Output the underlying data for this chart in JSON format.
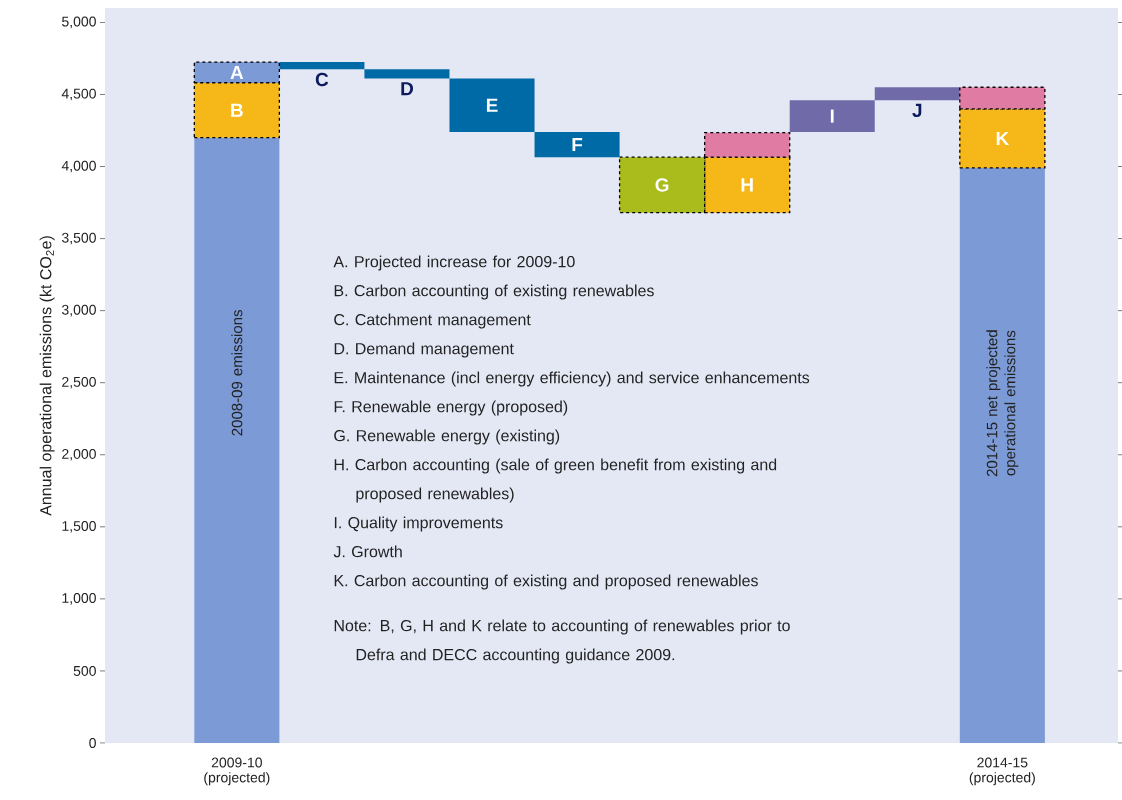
{
  "chart_data": {
    "type": "bar",
    "ylabel": "Annual operational emissions (kt CO$_{2}$e)",
    "categories": [
      "2009-10 (projected)",
      null,
      null,
      null,
      null,
      null,
      null,
      null,
      null,
      "2014-15 (projected)"
    ],
    "series": [
      {
        "color": "#7b9ad6",
        "values": [
          4200,
          null,
          null,
          null,
          null,
          null,
          null,
          null,
          null,
          3990
        ],
        "base": [
          0,
          null,
          null,
          null,
          null,
          null,
          null,
          null,
          null,
          0
        ],
        "value_labels": [
          "2008-09 emissions",
          null,
          null,
          null,
          null,
          null,
          null,
          null,
          null,
          "2014-15 net projected operational emissions"
        ]
      },
      {
        "color": "#006aa6",
        "values": [
          null,
          -50,
          -65,
          -370,
          -175,
          null,
          null,
          null,
          null,
          null
        ],
        "base": [
          null,
          4725,
          4675,
          4610,
          4240,
          null,
          null,
          null,
          null,
          null
        ],
        "value_labels": [
          null,
          "C",
          "D",
          "E",
          "F",
          null,
          null,
          null,
          null,
          null
        ]
      },
      {
        "color": "#716aa9",
        "values": [
          null,
          null,
          null,
          null,
          null,
          null,
          null,
          220,
          90,
          null
        ],
        "base": [
          null,
          null,
          null,
          null,
          null,
          null,
          null,
          4240,
          4460,
          null
        ],
        "value_labels": [
          null,
          null,
          null,
          null,
          null,
          null,
          null,
          "I",
          "J",
          null
        ]
      },
      {
        "color": "#7b9ad6",
        "line_style": "dashed",
        "values": [
          145,
          null,
          null,
          null,
          null,
          null,
          null,
          null,
          null,
          null
        ],
        "base": [
          4580,
          null,
          null,
          null,
          null,
          null,
          null,
          null,
          null,
          null
        ],
        "value_labels": [
          "A",
          null,
          null,
          null,
          null,
          null,
          null,
          null,
          null,
          null
        ]
      },
      {
        "color": "#f5b818",
        "line_style": "dashed",
        "values": [
          380,
          null,
          null,
          null,
          null,
          null,
          385,
          null,
          null,
          410
        ],
        "base": [
          4200,
          null,
          null,
          null,
          null,
          null,
          3680,
          null,
          null,
          3990
        ],
        "value_labels": [
          "B",
          null,
          null,
          null,
          null,
          null,
          "H",
          null,
          null,
          "K"
        ]
      },
      {
        "color": "#aabb1c",
        "line_style": "dashed",
        "values": [
          null,
          null,
          null,
          null,
          null,
          -385,
          null,
          null,
          null,
          null
        ],
        "base": [
          null,
          null,
          null,
          null,
          null,
          4065,
          null,
          null,
          null,
          null
        ],
        "value_labels": [
          null,
          null,
          null,
          null,
          null,
          "G",
          null,
          null,
          null,
          null
        ]
      },
      {
        "color": "#e07ba3",
        "line_style": "dashed",
        "values": [
          null,
          null,
          null,
          null,
          null,
          null,
          170,
          null,
          null,
          150
        ],
        "base": [
          null,
          null,
          null,
          null,
          null,
          null,
          4065,
          null,
          null,
          4400
        ]
      }
    ],
    "ylim": [
      0,
      5100
    ],
    "yticks": [
      0,
      500,
      {
        "value": 1000,
        "label": "1,000"
      },
      {
        "value": 1500,
        "label": "1,500"
      },
      {
        "value": 2000,
        "label": "2,000"
      },
      {
        "value": 2500,
        "label": "2,500"
      },
      {
        "value": 3000,
        "label": "3,000"
      },
      {
        "value": 3500,
        "label": "3,500"
      },
      {
        "value": 4000,
        "label": "4,000"
      },
      {
        "value": 4500,
        "label": "4,500"
      },
      {
        "value": 5000,
        "label": "5,000"
      }
    ],
    "annotations": [
      "A. Projected increase for 2009-10",
      "B. Carbon accounting of existing renewables",
      "C. Catchment management",
      "D. Demand management",
      "E. Maintenance (incl energy efficiency) and service enhancements",
      "F. Renewable energy (proposed)",
      "G. Renewable energy (existing)",
      "H. Carbon accounting (sale of green benefit from existing and proposed renewables)",
      "I. Quality improvements",
      "J. Growth",
      "K. Carbon accounting of existing and proposed renewables",
      "Note: B, G, H and K relate to accounting of renewables prior to Defra and DECC accounting guidance 2009."
    ]
  }
}
